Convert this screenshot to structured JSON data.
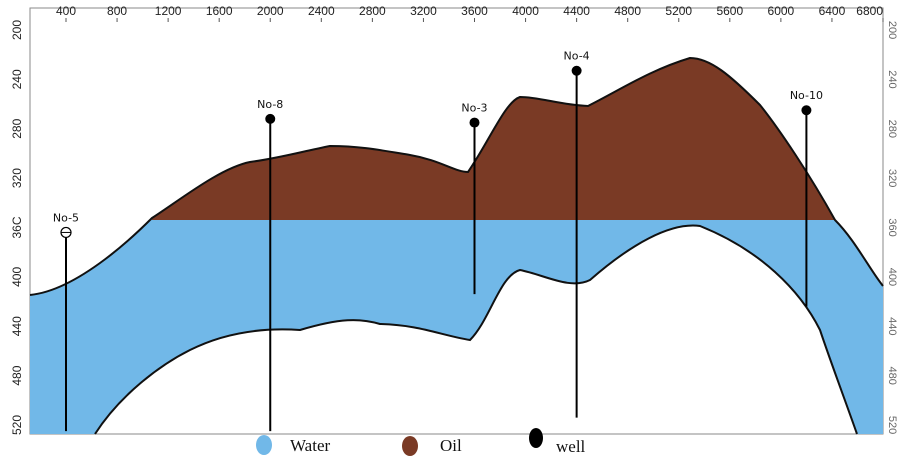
{
  "colors": {
    "water": "#71B8E8",
    "oil": "#7A3A25",
    "well": "#000000",
    "outline": "#111111",
    "frame": "#8a8a8a"
  },
  "axis_top": [
    "400",
    "800",
    "1200",
    "1600",
    "2000",
    "2400",
    "2800",
    "3200",
    "3600",
    "4000",
    "4400",
    "4800",
    "5200",
    "5600",
    "6000",
    "6400",
    "6800"
  ],
  "axis_left": [
    "200",
    "240",
    "280",
    "320",
    "36C",
    "400",
    "440",
    "480",
    "520"
  ],
  "axis_right": [
    "200",
    "240",
    "280",
    "320",
    "360",
    "400",
    "440",
    "480",
    "520"
  ],
  "wells": [
    {
      "label": "No-5",
      "x": 400,
      "top": 364,
      "bottom": 525,
      "hollow": true
    },
    {
      "label": "No-8",
      "x": 2000,
      "top": 272,
      "bottom": 525,
      "hollow": false
    },
    {
      "label": "No-3",
      "x": 3600,
      "top": 275,
      "bottom": 414,
      "hollow": false
    },
    {
      "label": "No-4",
      "x": 4400,
      "top": 233,
      "bottom": 514,
      "hollow": false
    },
    {
      "label": "No-10",
      "x": 6200,
      "top": 265,
      "bottom": 424,
      "hollow": false
    }
  ],
  "legend": [
    {
      "label": "Water",
      "kind": "water"
    },
    {
      "label": "Oil",
      "kind": "oil"
    },
    {
      "label": "well",
      "kind": "well"
    }
  ]
}
